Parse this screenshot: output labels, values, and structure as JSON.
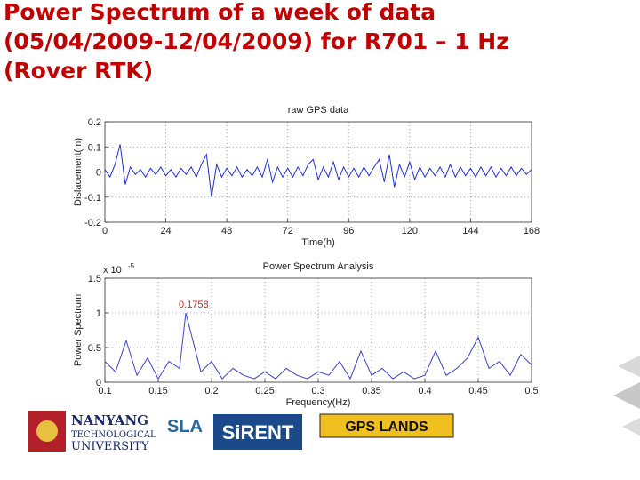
{
  "title_lines": [
    "Power Spectrum of a week of data",
    "(05/04/2009-12/04/2009) for R701 – 1 Hz",
    "(Rover RTK)"
  ],
  "chart_data": [
    {
      "type": "line",
      "title": "raw GPS data",
      "xlabel": "Time(h)",
      "ylabel": "Dislacement(m)",
      "color": "#1f2fd0",
      "xlim": [
        0,
        168
      ],
      "xticks": [
        0,
        24,
        48,
        72,
        96,
        120,
        144,
        168
      ],
      "ylim": [
        -0.2,
        0.2
      ],
      "yticks": [
        -0.2,
        -0.1,
        0,
        0.1,
        0.2
      ],
      "grid": true,
      "x": [
        0,
        2,
        4,
        6,
        8,
        10,
        12,
        14,
        16,
        18,
        20,
        22,
        24,
        26,
        28,
        30,
        32,
        34,
        36,
        38,
        40,
        42,
        44,
        46,
        48,
        50,
        52,
        54,
        56,
        58,
        60,
        62,
        64,
        66,
        68,
        70,
        72,
        74,
        76,
        78,
        80,
        82,
        84,
        86,
        88,
        90,
        92,
        94,
        96,
        98,
        100,
        102,
        104,
        106,
        108,
        110,
        112,
        114,
        116,
        118,
        120,
        122,
        124,
        126,
        128,
        130,
        132,
        134,
        136,
        138,
        140,
        142,
        144,
        146,
        148,
        150,
        152,
        154,
        156,
        158,
        160,
        162,
        164,
        166,
        168
      ],
      "values": [
        0.01,
        -0.02,
        0.03,
        0.11,
        -0.05,
        0.02,
        -0.01,
        0.01,
        -0.02,
        0.015,
        -0.01,
        0.02,
        -0.015,
        0.01,
        -0.02,
        0.015,
        -0.01,
        0.02,
        -0.02,
        0.03,
        0.07,
        -0.1,
        0.03,
        -0.02,
        0.015,
        -0.015,
        0.02,
        -0.02,
        0.01,
        -0.015,
        0.02,
        -0.02,
        0.05,
        -0.04,
        0.02,
        -0.02,
        0.015,
        -0.02,
        0.02,
        -0.015,
        0.03,
        0.05,
        -0.03,
        0.02,
        -0.02,
        0.04,
        -0.03,
        0.02,
        -0.02,
        0.015,
        -0.02,
        0.02,
        -0.015,
        0.02,
        0.05,
        -0.04,
        0.07,
        -0.06,
        0.03,
        -0.02,
        0.04,
        -0.03,
        0.02,
        -0.02,
        0.015,
        -0.015,
        0.02,
        -0.02,
        0.03,
        -0.02,
        0.02,
        -0.015,
        0.015,
        -0.02,
        0.02,
        -0.015,
        0.02,
        -0.02,
        0.015,
        -0.015,
        0.02,
        -0.015,
        0.015,
        -0.01,
        0.01
      ]
    },
    {
      "type": "line",
      "title": "Power Spectrum Analysis",
      "xlabel": "Frequency(Hz)",
      "ylabel": "Power Spectrum",
      "color": "#3a44c8",
      "y_multiplier": {
        "base": "x 10",
        "exponent": "-5"
      },
      "xlim": [
        0.1,
        0.5
      ],
      "xticks": [
        0.1,
        0.15,
        0.2,
        0.25,
        0.3,
        0.35,
        0.4,
        0.45,
        0.5
      ],
      "ylim": [
        0,
        1.5
      ],
      "yticks": [
        0,
        0.5,
        1,
        1.5
      ],
      "grid": true,
      "annotations": [
        {
          "text": "0.1758",
          "x": 0.1758,
          "y": 1,
          "color": "#d02020"
        }
      ],
      "x": [
        0.1,
        0.11,
        0.12,
        0.13,
        0.14,
        0.15,
        0.16,
        0.17,
        0.1758,
        0.19,
        0.2,
        0.21,
        0.22,
        0.23,
        0.24,
        0.25,
        0.26,
        0.27,
        0.28,
        0.29,
        0.3,
        0.31,
        0.32,
        0.33,
        0.34,
        0.35,
        0.36,
        0.37,
        0.38,
        0.39,
        0.4,
        0.41,
        0.42,
        0.43,
        0.44,
        0.45,
        0.46,
        0.47,
        0.48,
        0.49,
        0.5
      ],
      "values": [
        0.3,
        0.15,
        0.6,
        0.1,
        0.35,
        0.05,
        0.3,
        0.2,
        1,
        0.15,
        0.3,
        0.05,
        0.2,
        0.1,
        0.05,
        0.15,
        0.05,
        0.2,
        0.1,
        0.05,
        0.15,
        0.1,
        0.3,
        0.05,
        0.45,
        0.1,
        0.2,
        0.05,
        0.15,
        0.05,
        0.1,
        0.45,
        0.1,
        0.2,
        0.35,
        0.65,
        0.2,
        0.3,
        0.1,
        0.4,
        0.25
      ]
    }
  ],
  "logos": {
    "ntu": [
      "NANYANG",
      "TECHNOLOGICAL",
      "UNIVERSITY"
    ],
    "sla": "SLA",
    "sirent": "SiRENT",
    "gps": "GPS LANDS"
  }
}
